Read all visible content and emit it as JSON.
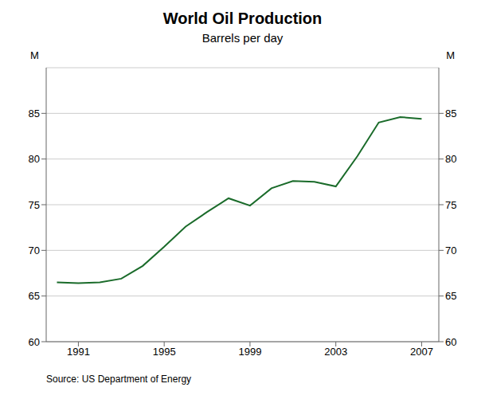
{
  "chart_data": {
    "type": "line",
    "title": "World Oil Production",
    "subtitle": "Barrels per day",
    "annotations": [
      "Source: US Department of Energy"
    ],
    "ylabel": "M",
    "y2label": "M",
    "x": [
      1990,
      1991,
      1992,
      1993,
      1994,
      1995,
      1996,
      1997,
      1998,
      1999,
      2000,
      2001,
      2002,
      2003,
      2004,
      2005,
      2006,
      2007
    ],
    "values": [
      66.5,
      66.4,
      66.5,
      66.9,
      68.3,
      70.4,
      72.6,
      74.2,
      75.7,
      74.9,
      76.8,
      77.6,
      77.5,
      77.0,
      80.3,
      84.0,
      84.6,
      84.4
    ],
    "color": "#1a6b2a",
    "xlim": [
      1989.5,
      2007.8
    ],
    "xticks": [
      1991,
      1995,
      1999,
      2003,
      2007
    ],
    "ylim": [
      60,
      90
    ],
    "yticks": [
      60,
      65,
      70,
      75,
      80,
      85
    ],
    "y2lim": [
      60,
      90
    ],
    "y2ticks": [
      60,
      65,
      70,
      75,
      80,
      85
    ],
    "grid": true
  }
}
